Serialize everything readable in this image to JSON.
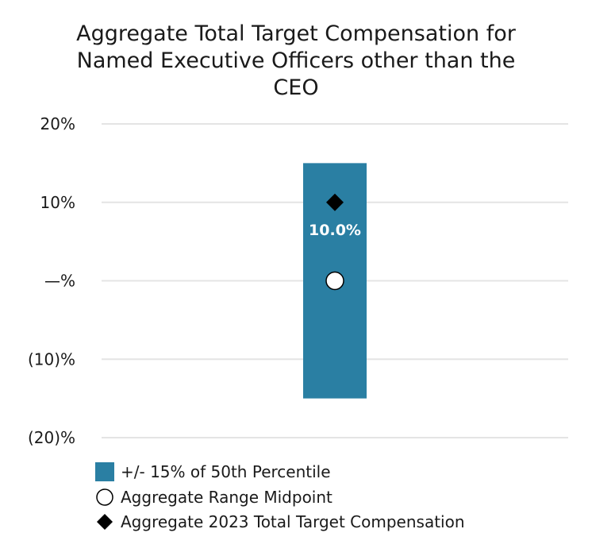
{
  "chart_data": {
    "type": "range-bar",
    "title": "Aggregate Total Target Compensation for\nNamed Executive Officers other than the\nCEO",
    "ylim": [
      -20,
      20
    ],
    "yticks": [
      {
        "value": 20,
        "label": "20%"
      },
      {
        "value": 10,
        "label": "10%"
      },
      {
        "value": 0,
        "label": "—%"
      },
      {
        "value": -10,
        "label": "(10)%"
      },
      {
        "value": -20,
        "label": "(20)%"
      }
    ],
    "range": {
      "low": -15,
      "high": 15
    },
    "midpoint": 0,
    "actual": 10.0,
    "actual_label": "10.0%",
    "colors": {
      "bar": "#2a7fa3",
      "grid": "#e4e4e4",
      "marker": "#000000"
    },
    "legend": [
      {
        "symbol": "square",
        "label": "+/- 15% of 50th Percentile"
      },
      {
        "symbol": "circle",
        "label": "Aggregate Range Midpoint"
      },
      {
        "symbol": "diamond",
        "label": "Aggregate 2023 Total Target Compensation"
      }
    ]
  }
}
